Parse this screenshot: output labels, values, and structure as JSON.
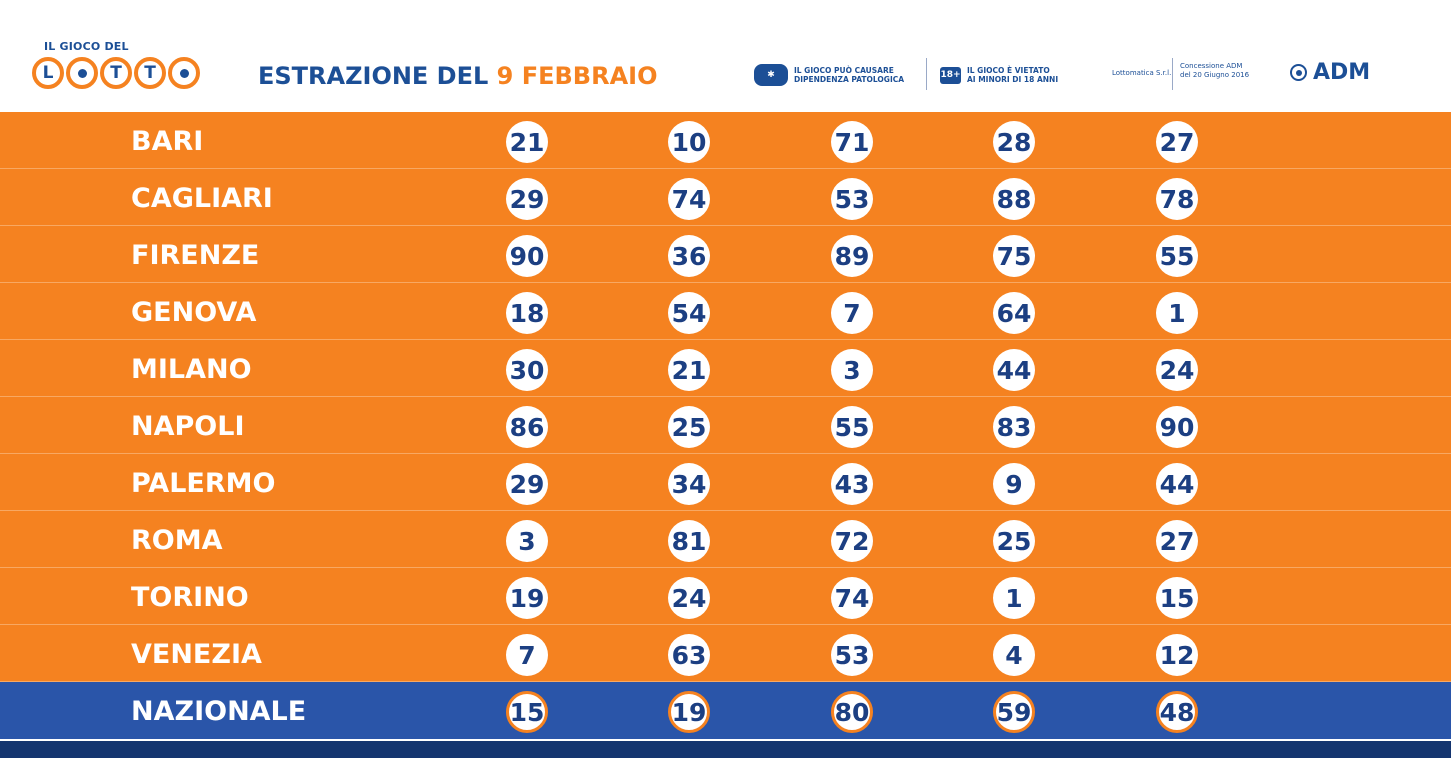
{
  "logo": {
    "top_text": "IL GIOCO DEL",
    "letters": [
      "L",
      "",
      "T",
      "T",
      ""
    ]
  },
  "header": {
    "title_prefix": "ESTRAZIONE DEL",
    "title_date": "9 FEBBRAIO",
    "dependency_line1": "IL GIOCO PUÒ CAUSARE",
    "dependency_line2": "DIPENDENZA PATOLOGICA",
    "age_badge": "18+",
    "age_line1": "IL GIOCO È VIETATO",
    "age_line2": "AI MINORI DI 18 ANNI",
    "operator": "Lottomatica S.r.l.",
    "concession_line1": "Concessione ADM",
    "concession_line2": "del 20 Giugno 2016",
    "adm": "ADM"
  },
  "draws": [
    {
      "city": "BARI",
      "numbers": [
        "21",
        "10",
        "71",
        "28",
        "27"
      ]
    },
    {
      "city": "CAGLIARI",
      "numbers": [
        "29",
        "74",
        "53",
        "88",
        "78"
      ]
    },
    {
      "city": "FIRENZE",
      "numbers": [
        "90",
        "36",
        "89",
        "75",
        "55"
      ]
    },
    {
      "city": "GENOVA",
      "numbers": [
        "18",
        "54",
        "7",
        "64",
        "1"
      ]
    },
    {
      "city": "MILANO",
      "numbers": [
        "30",
        "21",
        "3",
        "44",
        "24"
      ]
    },
    {
      "city": "NAPOLI",
      "numbers": [
        "86",
        "25",
        "55",
        "83",
        "90"
      ]
    },
    {
      "city": "PALERMO",
      "numbers": [
        "29",
        "34",
        "43",
        "9",
        "44"
      ]
    },
    {
      "city": "ROMA",
      "numbers": [
        "3",
        "81",
        "72",
        "25",
        "27"
      ]
    },
    {
      "city": "TORINO",
      "numbers": [
        "19",
        "24",
        "74",
        "1",
        "15"
      ]
    },
    {
      "city": "VENEZIA",
      "numbers": [
        "7",
        "63",
        "53",
        "4",
        "12"
      ]
    },
    {
      "city": "NAZIONALE",
      "numbers": [
        "15",
        "19",
        "80",
        "59",
        "48"
      ]
    }
  ],
  "colors": {
    "orange": "#f58220",
    "blue": "#2a55a9",
    "navy": "#1c4f96"
  }
}
